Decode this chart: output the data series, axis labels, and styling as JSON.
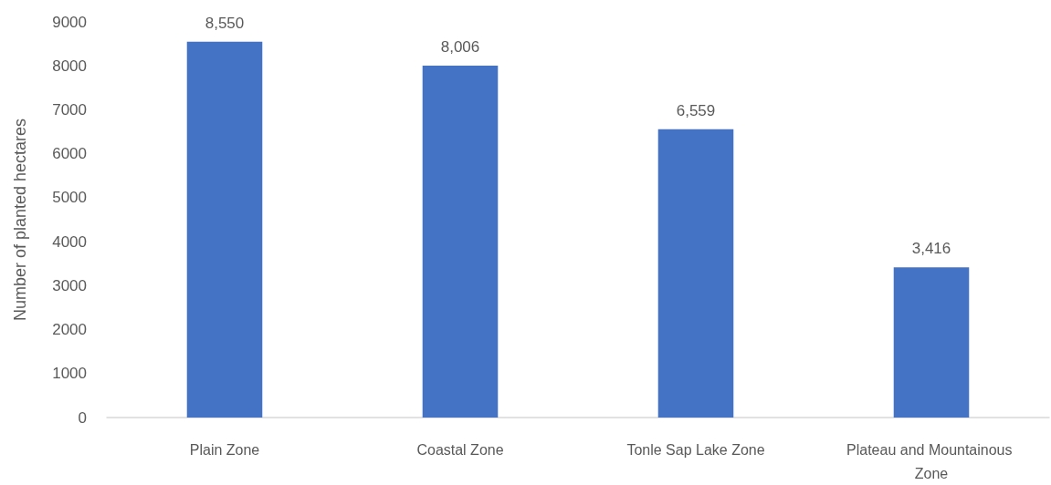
{
  "chart_data": {
    "type": "bar",
    "ylabel": "Number of planted hectares",
    "categories": [
      "Plain Zone",
      "Coastal Zone",
      "Tonle Sap Lake Zone",
      "Plateau and Mountainous Zone"
    ],
    "values": [
      8550,
      8006,
      6559,
      3416
    ],
    "value_labels": [
      "8,550",
      "8,006",
      "6,559",
      "3,416"
    ],
    "color": "#4472c4",
    "ylim": [
      0,
      9000
    ],
    "yticks": [
      0,
      1000,
      2000,
      3000,
      4000,
      5000,
      6000,
      7000,
      8000,
      9000
    ],
    "grid": false
  }
}
